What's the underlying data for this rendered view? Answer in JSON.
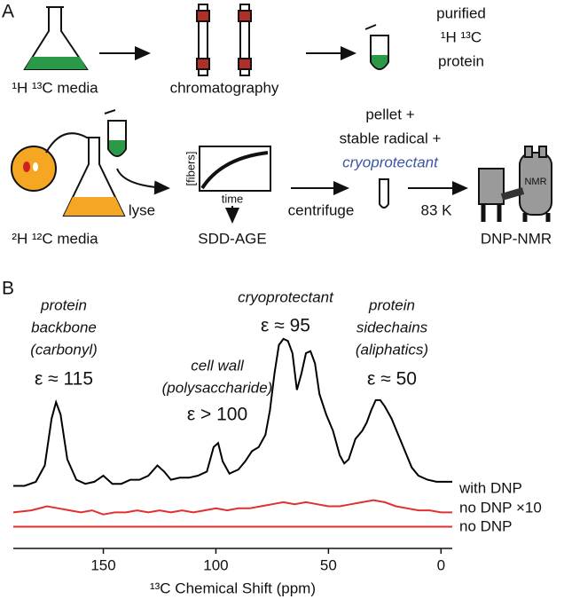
{
  "panel_a": {
    "label": "A",
    "media_1": "¹H ¹³C media",
    "chromatography": "chromatography",
    "purified": [
      "purified",
      "¹H ¹³C",
      "protein"
    ],
    "media_2": "²H ¹²C media",
    "lyse": "lyse",
    "fibers": "[fibers]",
    "time": "time",
    "sdd_age": "SDD-AGE",
    "centrifuge": "centrifuge",
    "sample": [
      "pellet +",
      "stable radical +"
    ],
    "cryoprotectant": "cryoprotectant",
    "temperature": "83 K",
    "nmr": "NMR",
    "dnp_nmr": "DNP-NMR"
  },
  "chart_data": {
    "type": "line",
    "panel_label": "B",
    "x_label": "¹³C Chemical Shift (ppm)",
    "xlim": [
      190,
      -5
    ],
    "xticks": [
      150,
      100,
      50,
      0
    ],
    "ylim": [
      0,
      100
    ],
    "annotations": [
      {
        "lines": [
          "protein",
          "backbone",
          "(carbonyl)"
        ],
        "value": "ε ≈ 115",
        "color": "#2e8b3e"
      },
      {
        "lines": [
          "cell wall",
          "(polysaccharide)"
        ],
        "value": "ε > 100",
        "color": "#e8821e"
      },
      {
        "lines": [
          "cryoprotectant"
        ],
        "value": "ε ≈ 95",
        "color": "#3a56a4"
      },
      {
        "lines": [
          "protein",
          "sidechains",
          "(aliphatics)"
        ],
        "value": "ε ≈ 50",
        "color": "#2e8b3e"
      }
    ],
    "series": [
      {
        "name": "with DNP",
        "color": "#000000",
        "x": [
          190,
          185,
          180,
          176,
          173,
          171,
          169,
          166,
          162,
          158,
          154,
          150,
          146,
          142,
          138,
          134,
          130,
          126,
          123,
          120,
          116,
          112,
          108,
          104,
          101,
          99,
          97,
          94,
          90,
          87,
          84,
          81,
          78,
          76,
          74,
          72,
          70,
          68,
          66,
          64,
          62,
          60,
          58,
          56,
          54,
          51,
          48,
          45,
          43,
          41,
          38,
          35,
          33,
          31,
          29,
          27,
          25,
          22,
          19,
          16,
          13,
          10,
          6,
          2,
          -2,
          -5
        ],
        "values": [
          25,
          25,
          27,
          35,
          58,
          66,
          60,
          38,
          28,
          26,
          27,
          30,
          26,
          26,
          28,
          28,
          30,
          35,
          32,
          28,
          29,
          29,
          30,
          32,
          44,
          46,
          37,
          31,
          33,
          37,
          42,
          44,
          50,
          62,
          80,
          94,
          97,
          96,
          90,
          72,
          80,
          90,
          91,
          85,
          70,
          60,
          52,
          40,
          36,
          38,
          48,
          52,
          56,
          62,
          67,
          67,
          64,
          58,
          50,
          42,
          34,
          30,
          28,
          27,
          27,
          27
        ]
      },
      {
        "name": "no DNP ×10",
        "color": "#e03030",
        "x": [
          190,
          182,
          175,
          170,
          165,
          160,
          155,
          150,
          145,
          140,
          135,
          130,
          125,
          120,
          115,
          110,
          105,
          100,
          95,
          90,
          85,
          80,
          75,
          70,
          65,
          60,
          55,
          50,
          45,
          40,
          35,
          30,
          25,
          20,
          15,
          10,
          5,
          0,
          -5
        ],
        "values": [
          12,
          13,
          15,
          14,
          13,
          12,
          13,
          11,
          12,
          12,
          13,
          12,
          13,
          12,
          13,
          12,
          13,
          14,
          13,
          14,
          14,
          15,
          16,
          17,
          16,
          17,
          16,
          15,
          15,
          16,
          17,
          18,
          17,
          15,
          14,
          13,
          13,
          12,
          12
        ]
      },
      {
        "name": "no DNP",
        "color": "#e03030",
        "x": [
          190,
          -5
        ],
        "values": [
          5,
          5
        ]
      }
    ]
  }
}
